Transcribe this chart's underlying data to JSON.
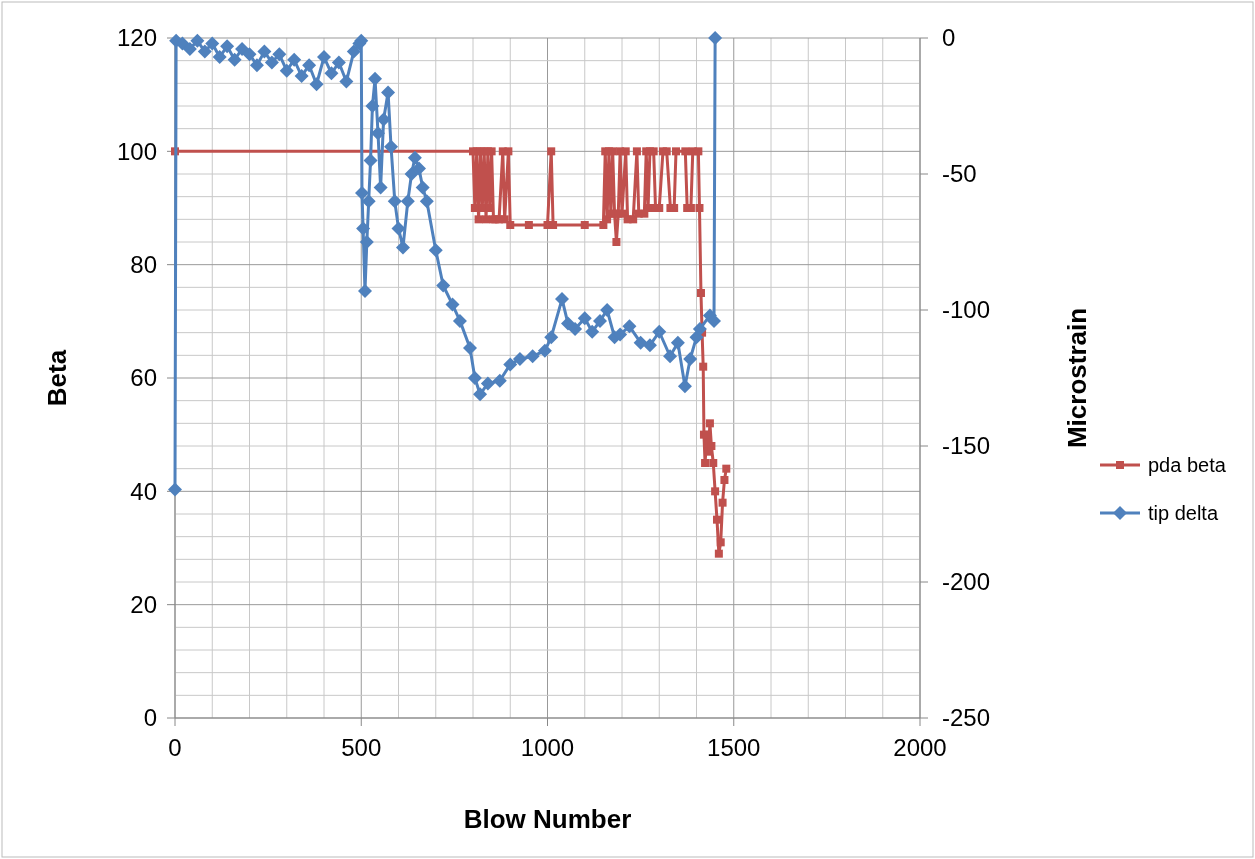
{
  "chart_data": {
    "type": "line",
    "xlabel": "Blow Number",
    "ylabel": "Beta",
    "y2label": "Microstrain",
    "xlim": [
      0,
      2000
    ],
    "xticks": [
      0,
      {
        "value": 100,
        "label": null
      },
      {
        "value": 200,
        "label": null
      },
      {
        "value": 300,
        "label": null
      },
      {
        "value": 400,
        "label": null
      },
      500,
      {
        "value": 600,
        "label": null
      },
      {
        "value": 700,
        "label": null
      },
      {
        "value": 800,
        "label": null
      },
      {
        "value": 900,
        "label": null
      },
      1000,
      {
        "value": 1100,
        "label": null
      },
      {
        "value": 1200,
        "label": null
      },
      {
        "value": 1300,
        "label": null
      },
      {
        "value": 1400,
        "label": null
      },
      1500,
      {
        "value": 1600,
        "label": null
      },
      {
        "value": 1700,
        "label": null
      },
      {
        "value": 1800,
        "label": null
      },
      {
        "value": 1900,
        "label": null
      },
      2000
    ],
    "ylim": [
      0,
      120
    ],
    "yticks": [
      0,
      {
        "value": 4,
        "label": null
      },
      {
        "value": 8,
        "label": null
      },
      {
        "value": 12,
        "label": null
      },
      {
        "value": 16,
        "label": null
      },
      20,
      {
        "value": 24,
        "label": null
      },
      {
        "value": 28,
        "label": null
      },
      {
        "value": 32,
        "label": null
      },
      {
        "value": 36,
        "label": null
      },
      40,
      {
        "value": 44,
        "label": null
      },
      {
        "value": 48,
        "label": null
      },
      {
        "value": 52,
        "label": null
      },
      {
        "value": 56,
        "label": null
      },
      60,
      {
        "value": 64,
        "label": null
      },
      {
        "value": 68,
        "label": null
      },
      {
        "value": 72,
        "label": null
      },
      {
        "value": 76,
        "label": null
      },
      80,
      {
        "value": 84,
        "label": null
      },
      {
        "value": 88,
        "label": null
      },
      {
        "value": 92,
        "label": null
      },
      {
        "value": 96,
        "label": null
      },
      100,
      {
        "value": 104,
        "label": null
      },
      {
        "value": 108,
        "label": null
      },
      {
        "value": 112,
        "label": null
      },
      {
        "value": 116,
        "label": null
      },
      120
    ],
    "y2lim": [
      -250,
      0
    ],
    "y2ticks": [
      -250,
      -200,
      -150,
      -100,
      -50,
      0
    ],
    "grid": true,
    "legend": "right",
    "line_style": "solid",
    "series": [
      {
        "name": "pda beta",
        "color": "#c0504d",
        "marker": "square",
        "x": [
          0,
          800,
          805,
          810,
          815,
          820,
          825,
          830,
          835,
          840,
          845,
          850,
          855,
          860,
          870,
          880,
          885,
          895,
          900,
          950,
          1000,
          1010,
          1015,
          1100,
          1150,
          1155,
          1160,
          1165,
          1170,
          1175,
          1180,
          1185,
          1190,
          1195,
          1200,
          1210,
          1215,
          1230,
          1240,
          1245,
          1260,
          1265,
          1270,
          1275,
          1285,
          1290,
          1300,
          1310,
          1320,
          1330,
          1340,
          1345,
          1370,
          1375,
          1385,
          1390,
          1405,
          1408,
          1412,
          1415,
          1418,
          1420,
          1423,
          1428,
          1432,
          1436,
          1440,
          1445,
          1450,
          1455,
          1460,
          1465,
          1470,
          1475,
          1480
        ],
        "values": [
          100,
          100,
          90,
          100,
          88,
          100,
          90,
          100,
          88,
          100,
          90,
          100,
          88,
          88,
          88,
          100,
          88,
          100,
          87,
          87,
          87,
          100,
          87,
          87,
          87,
          100,
          88,
          100,
          89,
          100,
          89,
          84,
          89,
          100,
          89,
          100,
          88,
          88,
          100,
          89,
          89,
          100,
          90,
          100,
          100,
          90,
          90,
          100,
          100,
          90,
          90,
          100,
          100,
          90,
          90,
          100,
          100,
          90,
          75,
          68,
          62,
          50,
          45,
          50,
          47,
          52,
          48,
          45,
          40,
          35,
          29,
          31,
          38,
          42,
          44
        ]
      },
      {
        "name": "tip delta",
        "color": "#4f81bd",
        "marker": "diamond",
        "axis": "y2",
        "x": [
          0,
          3,
          20,
          40,
          60,
          80,
          100,
          120,
          140,
          160,
          180,
          200,
          220,
          240,
          260,
          280,
          300,
          320,
          340,
          360,
          380,
          400,
          420,
          440,
          460,
          480,
          495,
          500,
          502,
          505,
          510,
          515,
          520,
          525,
          530,
          537,
          545,
          552,
          560,
          572,
          580,
          590,
          600,
          612,
          625,
          635,
          644,
          655,
          665,
          676,
          700,
          720,
          745,
          765,
          792,
          805,
          819,
          840,
          872,
          900,
          926,
          960,
          993,
          1010,
          1039,
          1055,
          1074,
          1100,
          1120,
          1141,
          1160,
          1180,
          1195,
          1220,
          1250,
          1275,
          1300,
          1329,
          1350,
          1369,
          1383,
          1400,
          1409,
          1436,
          1447,
          1450
        ],
        "values": [
          -166,
          -1,
          -2,
          -4,
          -1,
          -5,
          -2,
          -7,
          -3,
          -8,
          -4,
          -6,
          -10,
          -5,
          -9,
          -6,
          -12,
          -8,
          -14,
          -10,
          -17,
          -7,
          -13,
          -9,
          -16,
          -5,
          -2,
          -1,
          -57,
          -70,
          -93,
          -75,
          -60,
          -45,
          -25,
          -15,
          -35,
          -55,
          -30,
          -20,
          -40,
          -60,
          -70,
          -77,
          -60,
          -50,
          -44,
          -48,
          -55,
          -60,
          -78,
          -91,
          -98,
          -104,
          -114,
          -125,
          -131,
          -127,
          -126,
          -120,
          -118,
          -117,
          -115,
          -110,
          -96,
          -105,
          -107,
          -103,
          -108,
          -104,
          -100,
          -110,
          -109,
          -106,
          -112,
          -113,
          -108,
          -117,
          -112,
          -128,
          -118,
          -110,
          -107,
          -102,
          -104,
          0
        ]
      }
    ]
  }
}
